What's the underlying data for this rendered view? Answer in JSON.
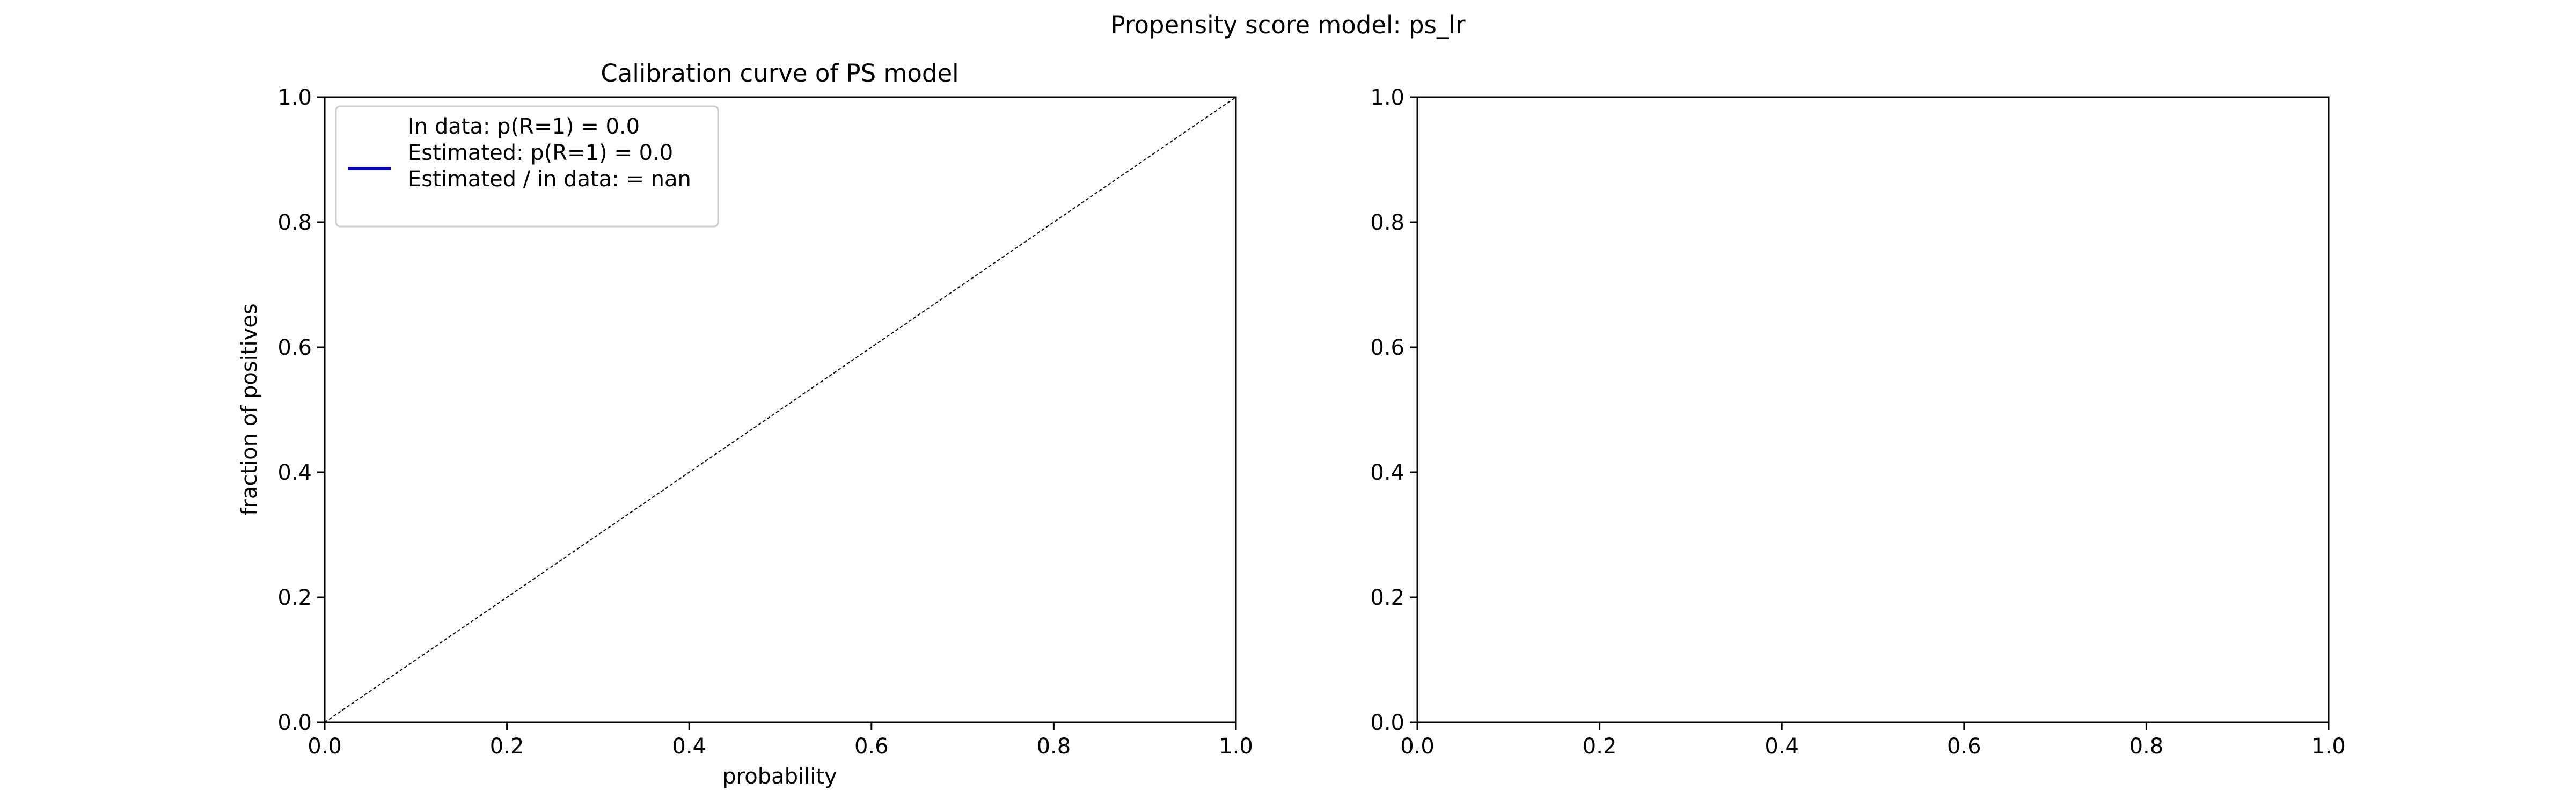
{
  "figure": {
    "suptitle": "Propensity score model: ps_lr"
  },
  "chart_data": [
    {
      "type": "line",
      "title": "Calibration curve of PS model",
      "xlabel": "probability",
      "ylabel": "fraction of positives",
      "xlim": [
        0,
        1
      ],
      "ylim": [
        0,
        1
      ],
      "xticks": [
        "0.0",
        "0.2",
        "0.4",
        "0.6",
        "0.8",
        "1.0"
      ],
      "yticks": [
        "0.0",
        "0.2",
        "0.4",
        "0.6",
        "0.8",
        "1.0"
      ],
      "grid": false,
      "legend_position": "upper-left",
      "reference_line": {
        "style": "dashed",
        "color": "#000000",
        "x": [
          0,
          1
        ],
        "y": [
          0,
          1
        ]
      },
      "series": [
        {
          "name": "In data: p(R=1) = 0.0\nEstimated: p(R=1) = 0.0\nEstimated / in data: = nan",
          "legend_lines": [
            "In data: p(R=1) = 0.0",
            "Estimated: p(R=1) = 0.0",
            "Estimated / in data: = nan"
          ],
          "color": "#0000cc",
          "x": [],
          "y": []
        }
      ]
    },
    {
      "type": "line",
      "title": "",
      "xlabel": "",
      "ylabel": "",
      "xlim": [
        0,
        1
      ],
      "ylim": [
        0,
        1
      ],
      "xticks": [
        "0.0",
        "0.2",
        "0.4",
        "0.6",
        "0.8",
        "1.0"
      ],
      "yticks": [
        "0.0",
        "0.2",
        "0.4",
        "0.6",
        "0.8",
        "1.0"
      ],
      "grid": false,
      "series": []
    }
  ]
}
